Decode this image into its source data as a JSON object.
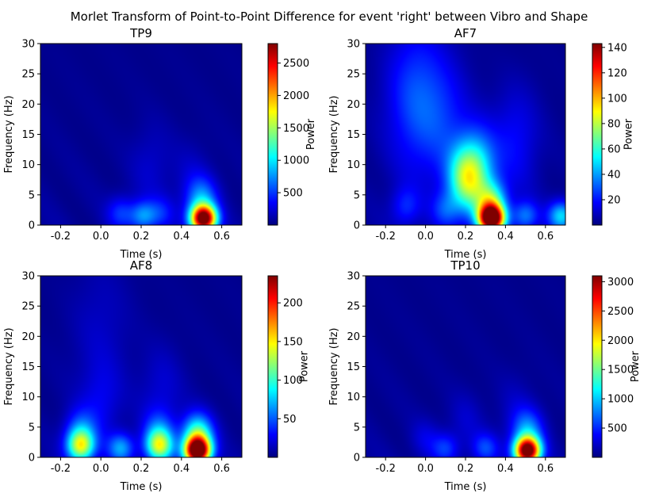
{
  "figure": {
    "suptitle": "Morlet Transform of Point-to-Point Difference for event 'right' between Vibro and Shape"
  },
  "colors": {
    "colormap": [
      "#00007f",
      "#0000ff",
      "#007fff",
      "#00ffff",
      "#7fff7f",
      "#ffff00",
      "#ff7f00",
      "#ff0000",
      "#7f0000"
    ],
    "axis": "#000000",
    "background": "#ffffff"
  },
  "chart_data": [
    {
      "type": "heatmap",
      "title": "TP9",
      "xlabel": "Time (s)",
      "ylabel": "Frequency (Hz)",
      "colorbar_label": "Power",
      "xlim": [
        -0.3,
        0.7
      ],
      "ylim": [
        0,
        30
      ],
      "xticks": [
        "-0.2",
        "0.0",
        "0.2",
        "0.4",
        "0.6"
      ],
      "yticks": [
        "0",
        "5",
        "10",
        "15",
        "20",
        "25",
        "30"
      ],
      "clim": [
        0,
        2800
      ],
      "cticks": [
        "500",
        "1000",
        "1500",
        "2000",
        "2500"
      ],
      "blobs": [
        {
          "t": 0.51,
          "f": 1.0,
          "power": 2800
        },
        {
          "t": 0.5,
          "f": 4.0,
          "power": 700
        },
        {
          "t": 0.21,
          "f": 1.5,
          "power": 650
        },
        {
          "t": 0.1,
          "f": 2.0,
          "power": 400
        },
        {
          "t": 0.3,
          "f": 2.0,
          "power": 300
        },
        {
          "t": 0.25,
          "f": 10.0,
          "power": 150
        },
        {
          "t": 0.45,
          "f": 8.0,
          "power": 120
        }
      ]
    },
    {
      "type": "heatmap",
      "title": "AF7",
      "xlabel": "Time (s)",
      "ylabel": "Frequency (Hz)",
      "colorbar_label": "Power",
      "xlim": [
        -0.3,
        0.7
      ],
      "ylim": [
        0,
        30
      ],
      "xticks": [
        "-0.2",
        "0.0",
        "0.2",
        "0.4",
        "0.6"
      ],
      "yticks": [
        "0",
        "5",
        "10",
        "15",
        "20",
        "25",
        "30"
      ],
      "clim": [
        0,
        143
      ],
      "cticks": [
        "20",
        "40",
        "60",
        "80",
        "100",
        "120",
        "140"
      ],
      "blobs": [
        {
          "t": 0.33,
          "f": 1.0,
          "power": 143
        },
        {
          "t": 0.33,
          "f": 3.5,
          "power": 60
        },
        {
          "t": 0.2,
          "f": 7.5,
          "power": 55
        },
        {
          "t": 0.26,
          "f": 9.5,
          "power": 40
        },
        {
          "t": 0.68,
          "f": 1.5,
          "power": 45
        },
        {
          "t": 0.5,
          "f": 1.5,
          "power": 30
        },
        {
          "t": 0.1,
          "f": 2.5,
          "power": 20
        },
        {
          "t": -0.1,
          "f": 3.0,
          "power": 18
        },
        {
          "t": -0.05,
          "f": 21.0,
          "power": 25
        },
        {
          "t": 0.1,
          "f": 17.0,
          "power": 15
        },
        {
          "t": 0.45,
          "f": 14.0,
          "power": 15
        }
      ]
    },
    {
      "type": "heatmap",
      "title": "AF8",
      "xlabel": "Time (s)",
      "ylabel": "Frequency (Hz)",
      "colorbar_label": "Power",
      "xlim": [
        -0.3,
        0.7
      ],
      "ylim": [
        0,
        30
      ],
      "xticks": [
        "-0.2",
        "0.0",
        "0.2",
        "0.4",
        "0.6"
      ],
      "yticks": [
        "0",
        "5",
        "10",
        "15",
        "20",
        "25",
        "30"
      ],
      "clim": [
        0,
        235
      ],
      "cticks": [
        "50",
        "100",
        "150",
        "200"
      ],
      "blobs": [
        {
          "t": 0.48,
          "f": 1.0,
          "power": 235
        },
        {
          "t": 0.48,
          "f": 3.5,
          "power": 110
        },
        {
          "t": -0.1,
          "f": 1.8,
          "power": 110
        },
        {
          "t": 0.29,
          "f": 1.8,
          "power": 105
        },
        {
          "t": 0.1,
          "f": 1.5,
          "power": 60
        },
        {
          "t": -0.1,
          "f": 4.0,
          "power": 50
        },
        {
          "t": 0.29,
          "f": 4.0,
          "power": 45
        },
        {
          "t": 0.0,
          "f": 9.0,
          "power": 18
        },
        {
          "t": 0.3,
          "f": 11.0,
          "power": 15
        },
        {
          "t": 0.0,
          "f": 21.0,
          "power": 12
        }
      ]
    },
    {
      "type": "heatmap",
      "title": "TP10",
      "xlabel": "Time (s)",
      "ylabel": "Frequency (Hz)",
      "colorbar_label": "Power",
      "xlim": [
        -0.3,
        0.7
      ],
      "ylim": [
        0,
        30
      ],
      "xticks": [
        "-0.2",
        "0.0",
        "0.2",
        "0.4",
        "0.6"
      ],
      "yticks": [
        "0",
        "5",
        "10",
        "15",
        "20",
        "25",
        "30"
      ],
      "clim": [
        0,
        3100
      ],
      "cticks": [
        "500",
        "1000",
        "1500",
        "2000",
        "2500",
        "3000"
      ],
      "blobs": [
        {
          "t": 0.51,
          "f": 1.0,
          "power": 3100
        },
        {
          "t": 0.51,
          "f": 4.0,
          "power": 800
        },
        {
          "t": 0.3,
          "f": 1.5,
          "power": 500
        },
        {
          "t": 0.1,
          "f": 1.5,
          "power": 450
        },
        {
          "t": 0.0,
          "f": 3.0,
          "power": 200
        },
        {
          "t": 0.2,
          "f": 6.0,
          "power": 150
        },
        {
          "t": 0.45,
          "f": 8.0,
          "power": 120
        }
      ]
    }
  ]
}
